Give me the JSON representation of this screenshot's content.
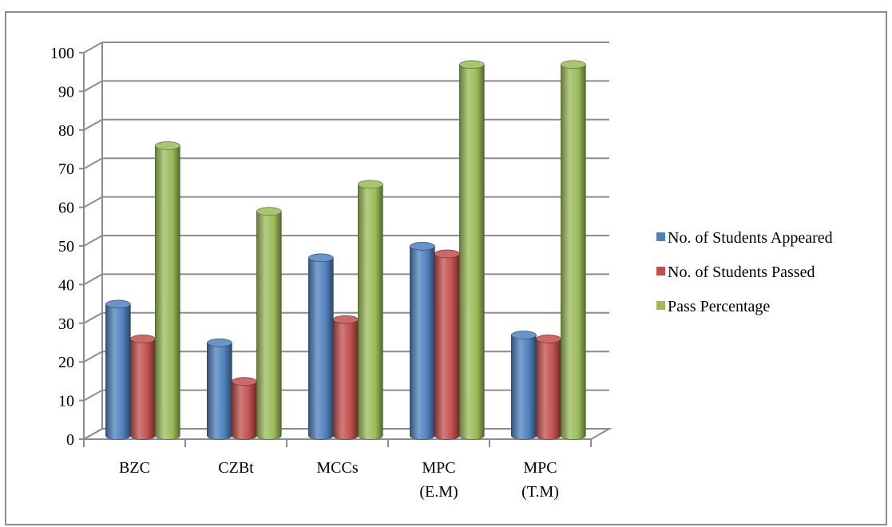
{
  "chart_data": {
    "type": "bar",
    "title": "",
    "xlabel": "",
    "ylabel": "",
    "ylim": [
      0,
      100
    ],
    "yticks": [
      "0",
      "10",
      "20",
      "30",
      "40",
      "50",
      "60",
      "70",
      "80",
      "90",
      "100"
    ],
    "categories": [
      [
        "BZC"
      ],
      [
        "CZBt"
      ],
      [
        "MCCs"
      ],
      [
        "MPC",
        "(E.M)"
      ],
      [
        "MPC",
        "(T.M)"
      ]
    ],
    "series": [
      {
        "name": "No. of Students Appeared",
        "color": "#4F81BD",
        "values": [
          34,
          24,
          46,
          49,
          26
        ]
      },
      {
        "name": "No. of Students Passed",
        "color": "#C0504D",
        "values": [
          25,
          14,
          30,
          47,
          25
        ]
      },
      {
        "name": "Pass Percentage",
        "color": "#9BBB59",
        "values": [
          75,
          58,
          65,
          96,
          96
        ]
      }
    ],
    "grid": true,
    "style": "3d-cylinder",
    "legend_position": "right"
  }
}
